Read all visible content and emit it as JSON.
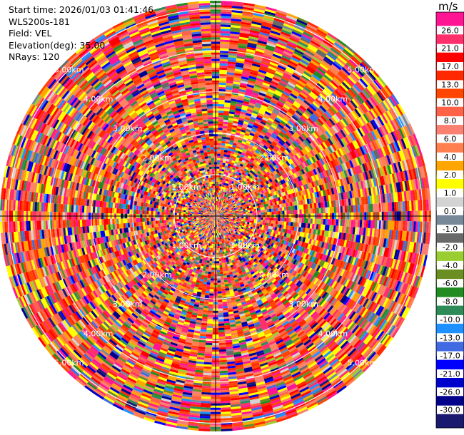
{
  "header": {
    "start_time": "Start time: 2026/01/03 01:41:46",
    "instrument": "WLS200s-181",
    "field": "Field: VEL",
    "elevation": "Elevation(deg): 35.00",
    "nrays": "NRays: 120"
  },
  "chart_data": {
    "type": "heatmap",
    "projection": "polar",
    "field": "VEL",
    "nrays": 120,
    "ring_labels": [
      "1.00km",
      "2.00km",
      "3.00km",
      "4.00km",
      "5.00km"
    ],
    "range_rings_km": [
      1,
      2,
      3,
      4,
      5
    ],
    "colorbar": {
      "unit": "m/s",
      "ticks": [
        "26.0",
        "21.0",
        "17.0",
        "13.0",
        "10.0",
        "8.0",
        "6.0",
        "4.0",
        "2.0",
        "1.0",
        "0.0",
        "-1.0",
        "-2.0",
        "-4.0",
        "-6.0",
        "-8.0",
        "-10.0",
        "-13.0",
        "-17.0",
        "-21.0",
        "-26.0",
        "-30.0"
      ],
      "colors": [
        "#ff1493",
        "#ff2f6b",
        "#ff0000",
        "#ff2800",
        "#ff4500",
        "#ff6347",
        "#fa8072",
        "#ff7f50",
        "#ffa500",
        "#ffff00",
        "#d3d3d3",
        "#778899",
        "#696969",
        "#9acd32",
        "#6b8e23",
        "#228b22",
        "#2e8b57",
        "#1e90ff",
        "#4169e1",
        "#0000ff",
        "#0000cd",
        "#00008b",
        "#191970"
      ]
    }
  }
}
